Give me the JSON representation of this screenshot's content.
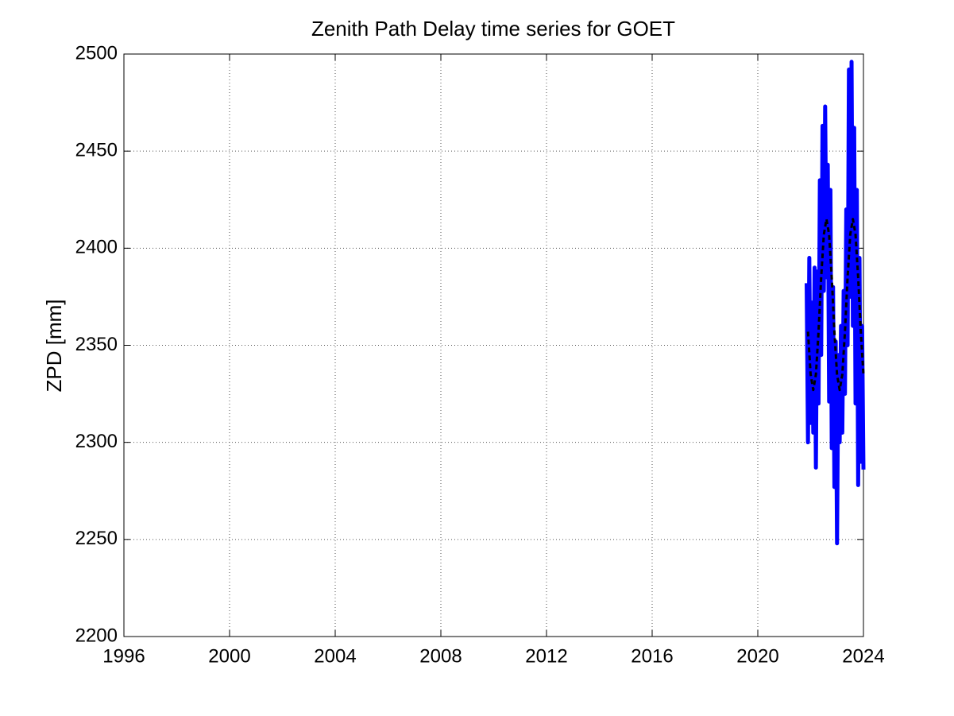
{
  "chart_data": {
    "type": "line",
    "title": "Zenith Path Delay time series for GOET",
    "ylabel": "ZPD [mm]",
    "xlim": [
      1996,
      2024
    ],
    "ylim": [
      2200,
      2500
    ],
    "xticks": [
      1996,
      2000,
      2004,
      2008,
      2012,
      2016,
      2020,
      2024
    ],
    "yticks": [
      2200,
      2250,
      2300,
      2350,
      2400,
      2450,
      2500
    ],
    "grid": true,
    "series": [
      {
        "color": "#0000ff",
        "style": "solid",
        "x": [
          2021.85,
          2021.9,
          2021.95,
          2022.0,
          2022.05,
          2022.1,
          2022.15,
          2022.2,
          2022.25,
          2022.3,
          2022.35,
          2022.4,
          2022.45,
          2022.5,
          2022.55,
          2022.6,
          2022.65,
          2022.7,
          2022.75,
          2022.8,
          2022.85,
          2022.9,
          2022.95,
          2023.0,
          2023.05,
          2023.1,
          2023.15,
          2023.2,
          2023.25,
          2023.3,
          2023.35,
          2023.4,
          2023.45,
          2023.5,
          2023.55,
          2023.6,
          2023.65,
          2023.7,
          2023.75,
          2023.8,
          2023.85,
          2023.9,
          2023.95,
          2024.0
        ],
        "values": [
          2382,
          2300,
          2395,
          2310,
          2372,
          2305,
          2390,
          2287,
          2388,
          2320,
          2435,
          2345,
          2463,
          2378,
          2473,
          2385,
          2443,
          2321,
          2430,
          2297,
          2380,
          2277,
          2352,
          2248,
          2345,
          2300,
          2360,
          2305,
          2378,
          2325,
          2420,
          2350,
          2492,
          2375,
          2496,
          2360,
          2462,
          2320,
          2430,
          2278,
          2395,
          2290,
          2360,
          2286
        ]
      },
      {
        "color": "#000000",
        "style": "dashed",
        "x": [
          2021.9,
          2022.0,
          2022.1,
          2022.2,
          2022.3,
          2022.4,
          2022.5,
          2022.6,
          2022.7,
          2022.8,
          2022.9,
          2023.0,
          2023.1,
          2023.2,
          2023.3,
          2023.4,
          2023.5,
          2023.6,
          2023.7,
          2023.8,
          2023.9,
          2024.0
        ],
        "values": [
          2357,
          2335,
          2327,
          2335,
          2357,
          2385,
          2407,
          2415,
          2407,
          2385,
          2357,
          2335,
          2327,
          2335,
          2357,
          2385,
          2407,
          2415,
          2407,
          2385,
          2357,
          2335
        ]
      }
    ]
  }
}
